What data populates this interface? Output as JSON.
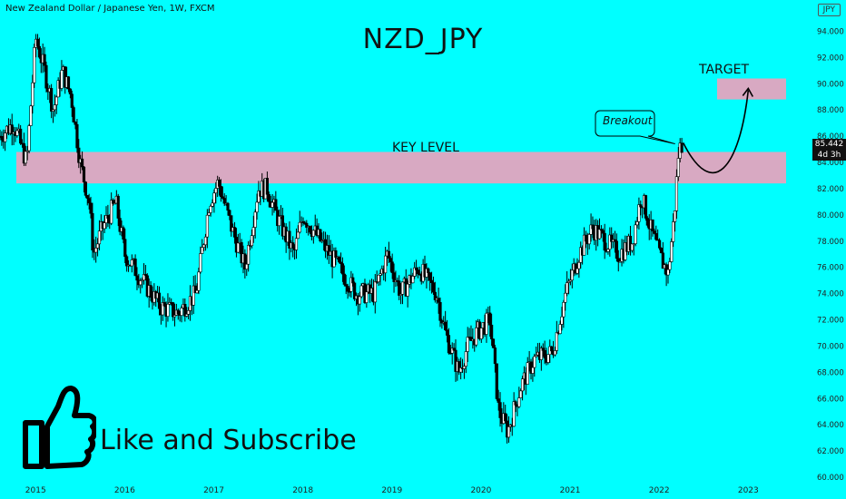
{
  "header": {
    "symbol_text": "New Zealand Dollar / Japanese Yen, 1W, FXCM",
    "currency_badge": "JPY"
  },
  "annotations": {
    "key_level": "KEY LEVEL",
    "target": "TARGET",
    "breakout": "Breakout",
    "cta": "Like and Subscribe"
  },
  "price_tag": {
    "value": "85.442",
    "countdown": "4d 3h"
  },
  "icons": {
    "thumbs_up": "thumbs-up-icon"
  },
  "colors": {
    "background": "#00ffff",
    "zone": "#d8a9c2",
    "candle": "#000000",
    "price_tag": "#111111"
  },
  "chart_data": {
    "type": "line",
    "title": "NZD_JPY",
    "xlabel": "",
    "ylabel": "",
    "ylim": [
      60,
      95
    ],
    "xlim": [
      2014.6,
      2023.7
    ],
    "y_ticks": [
      "94.000",
      "92.000",
      "90.000",
      "88.000",
      "86.000",
      "84.000",
      "82.000",
      "80.000",
      "78.000",
      "76.000",
      "74.000",
      "72.000",
      "70.000",
      "68.000",
      "66.000",
      "64.000",
      "62.000",
      "60.000"
    ],
    "x_ticks": [
      "2015",
      "2016",
      "2017",
      "2018",
      "2019",
      "2020",
      "2021",
      "2022",
      "2023"
    ],
    "series": [
      {
        "points": [
          [
            2014.6,
            86.0
          ],
          [
            2014.75,
            87.0
          ],
          [
            2014.9,
            84.0
          ],
          [
            2015.0,
            93.5
          ],
          [
            2015.1,
            91.0
          ],
          [
            2015.2,
            88.0
          ],
          [
            2015.3,
            91.0
          ],
          [
            2015.4,
            89.0
          ],
          [
            2015.5,
            84.0
          ],
          [
            2015.6,
            81.0
          ],
          [
            2015.65,
            77.0
          ],
          [
            2015.75,
            79.0
          ],
          [
            2015.9,
            81.0
          ],
          [
            2016.0,
            77.0
          ],
          [
            2016.2,
            75.0
          ],
          [
            2016.4,
            73.0
          ],
          [
            2016.6,
            72.5
          ],
          [
            2016.8,
            74.0
          ],
          [
            2016.95,
            81.0
          ],
          [
            2017.05,
            82.5
          ],
          [
            2017.2,
            79.0
          ],
          [
            2017.35,
            76.0
          ],
          [
            2017.5,
            82.0
          ],
          [
            2017.6,
            82.0
          ],
          [
            2017.7,
            80.0
          ],
          [
            2017.9,
            77.0
          ],
          [
            2018.0,
            80.0
          ],
          [
            2018.2,
            78.0
          ],
          [
            2018.4,
            76.0
          ],
          [
            2018.6,
            74.0
          ],
          [
            2018.8,
            74.0
          ],
          [
            2018.95,
            77.0
          ],
          [
            2019.1,
            74.0
          ],
          [
            2019.3,
            76.0
          ],
          [
            2019.5,
            74.0
          ],
          [
            2019.6,
            71.0
          ],
          [
            2019.75,
            68.0
          ],
          [
            2019.85,
            70.0
          ],
          [
            2019.95,
            71.0
          ],
          [
            2020.1,
            72.0
          ],
          [
            2020.2,
            65.0
          ],
          [
            2020.3,
            63.5
          ],
          [
            2020.45,
            67.0
          ],
          [
            2020.6,
            69.0
          ],
          [
            2020.8,
            69.5
          ],
          [
            2020.95,
            74.0
          ],
          [
            2021.1,
            77.0
          ],
          [
            2021.25,
            79.0
          ],
          [
            2021.4,
            78.0
          ],
          [
            2021.55,
            77.0
          ],
          [
            2021.7,
            78.0
          ],
          [
            2021.8,
            81.5
          ],
          [
            2021.9,
            79.0
          ],
          [
            2022.0,
            77.0
          ],
          [
            2022.1,
            75.5
          ],
          [
            2022.17,
            80.0
          ],
          [
            2022.22,
            85.0
          ],
          [
            2022.26,
            85.442
          ]
        ]
      }
    ],
    "zones": [
      {
        "label": "KEY LEVEL",
        "y_range": [
          82.4,
          84.8
        ],
        "x_range": [
          2014.6,
          2023.6
        ]
      },
      {
        "label": "TARGET",
        "y_range": [
          88.8,
          90.4
        ],
        "x_range": [
          2022.65,
          2023.6
        ]
      }
    ],
    "projection": [
      [
        2022.27,
        85.5
      ],
      [
        2022.6,
        83.8
      ],
      [
        2022.8,
        84.2
      ],
      [
        2023.0,
        89.5
      ]
    ],
    "breakout_marker": [
      2022.22,
      85.0
    ],
    "current_price": 85.442
  }
}
